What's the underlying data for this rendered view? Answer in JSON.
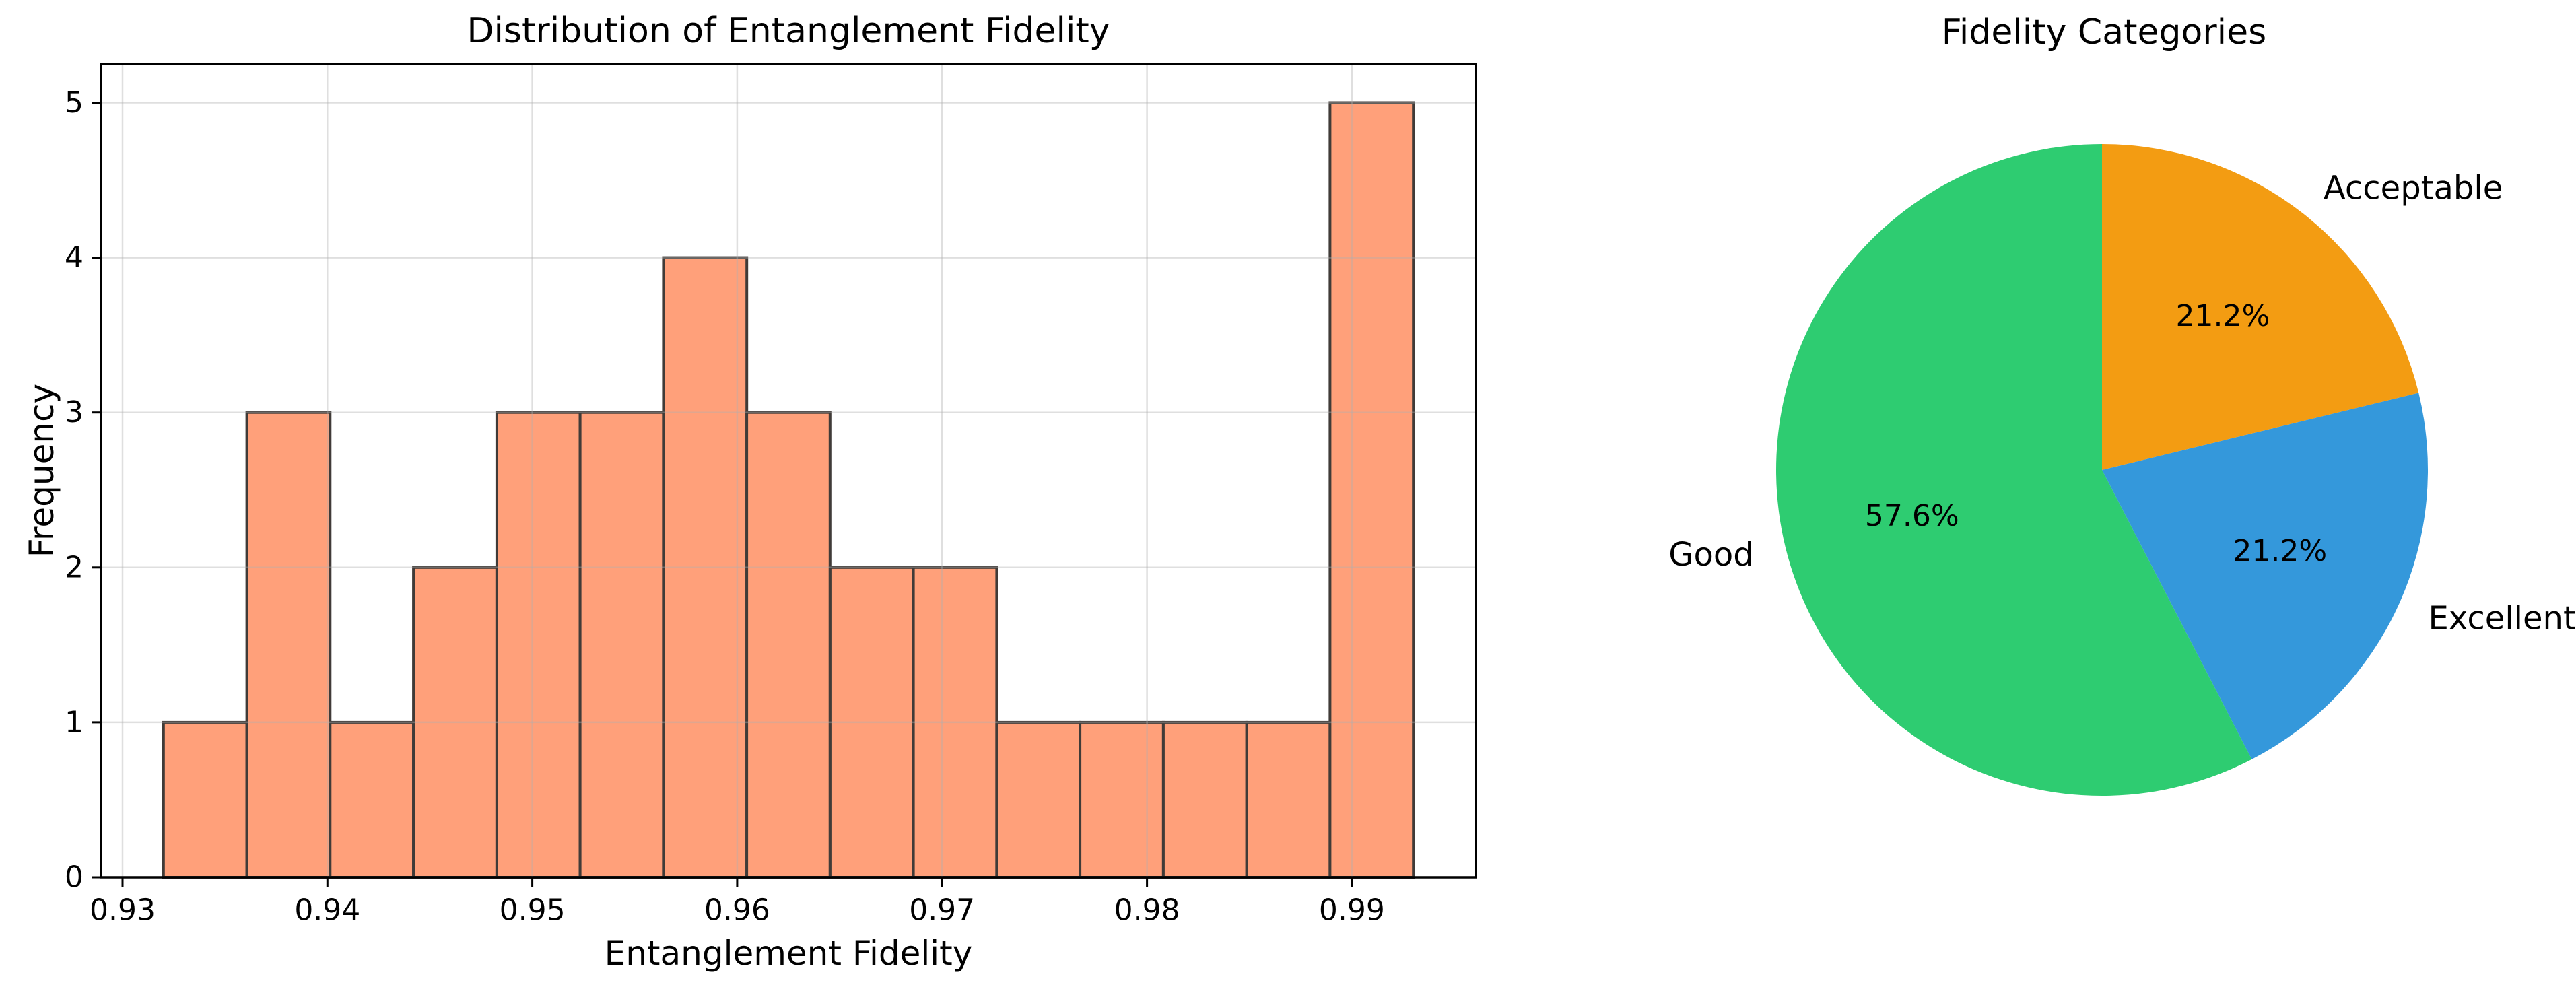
{
  "figure": {
    "background": "#ffffff"
  },
  "chart_data": [
    {
      "type": "bar",
      "subtype": "histogram",
      "title": "Distribution of Entanglement Fidelity",
      "xlabel": "Entanglement Fidelity",
      "ylabel": "Frequency",
      "bin_edges": [
        0.932,
        0.936067,
        0.940133,
        0.9442,
        0.948267,
        0.952333,
        0.9564,
        0.960467,
        0.964533,
        0.9686,
        0.972667,
        0.976733,
        0.9808,
        0.984867,
        0.988933,
        0.993
      ],
      "counts": [
        1,
        3,
        1,
        2,
        3,
        3,
        4,
        3,
        2,
        2,
        1,
        1,
        1,
        1,
        5
      ],
      "x_ticks": [
        0.93,
        0.94,
        0.95,
        0.96,
        0.97,
        0.98,
        0.99
      ],
      "x_tick_labels": [
        "0.93",
        "0.94",
        "0.95",
        "0.96",
        "0.97",
        "0.98",
        "0.99"
      ],
      "y_ticks": [
        0,
        1,
        2,
        3,
        4,
        5
      ],
      "y_tick_labels": [
        "0",
        "1",
        "2",
        "3",
        "4",
        "5"
      ],
      "xlim": [
        0.92895,
        0.99605
      ],
      "ylim": [
        0,
        5.25
      ],
      "grid": true,
      "bar_color": "#FFA07A",
      "bar_edge_color": "#403b38",
      "grid_color": "#b0b0b0",
      "grid_alpha": 0.4,
      "spine_color": "#000000"
    },
    {
      "type": "pie",
      "title": "Fidelity Categories",
      "labels": [
        "Acceptable",
        "Excellent",
        "Good"
      ],
      "values": [
        21.2,
        21.2,
        57.6
      ],
      "pct_labels": [
        "21.2%",
        "21.2%",
        "57.6%"
      ],
      "colors": [
        "#f39c12",
        "#3498db",
        "#2ecc71"
      ],
      "start_angle_deg": 90,
      "direction": "clockwise",
      "label_distance": 1.1,
      "pct_distance": 0.6,
      "text_color": "#000000"
    }
  ]
}
